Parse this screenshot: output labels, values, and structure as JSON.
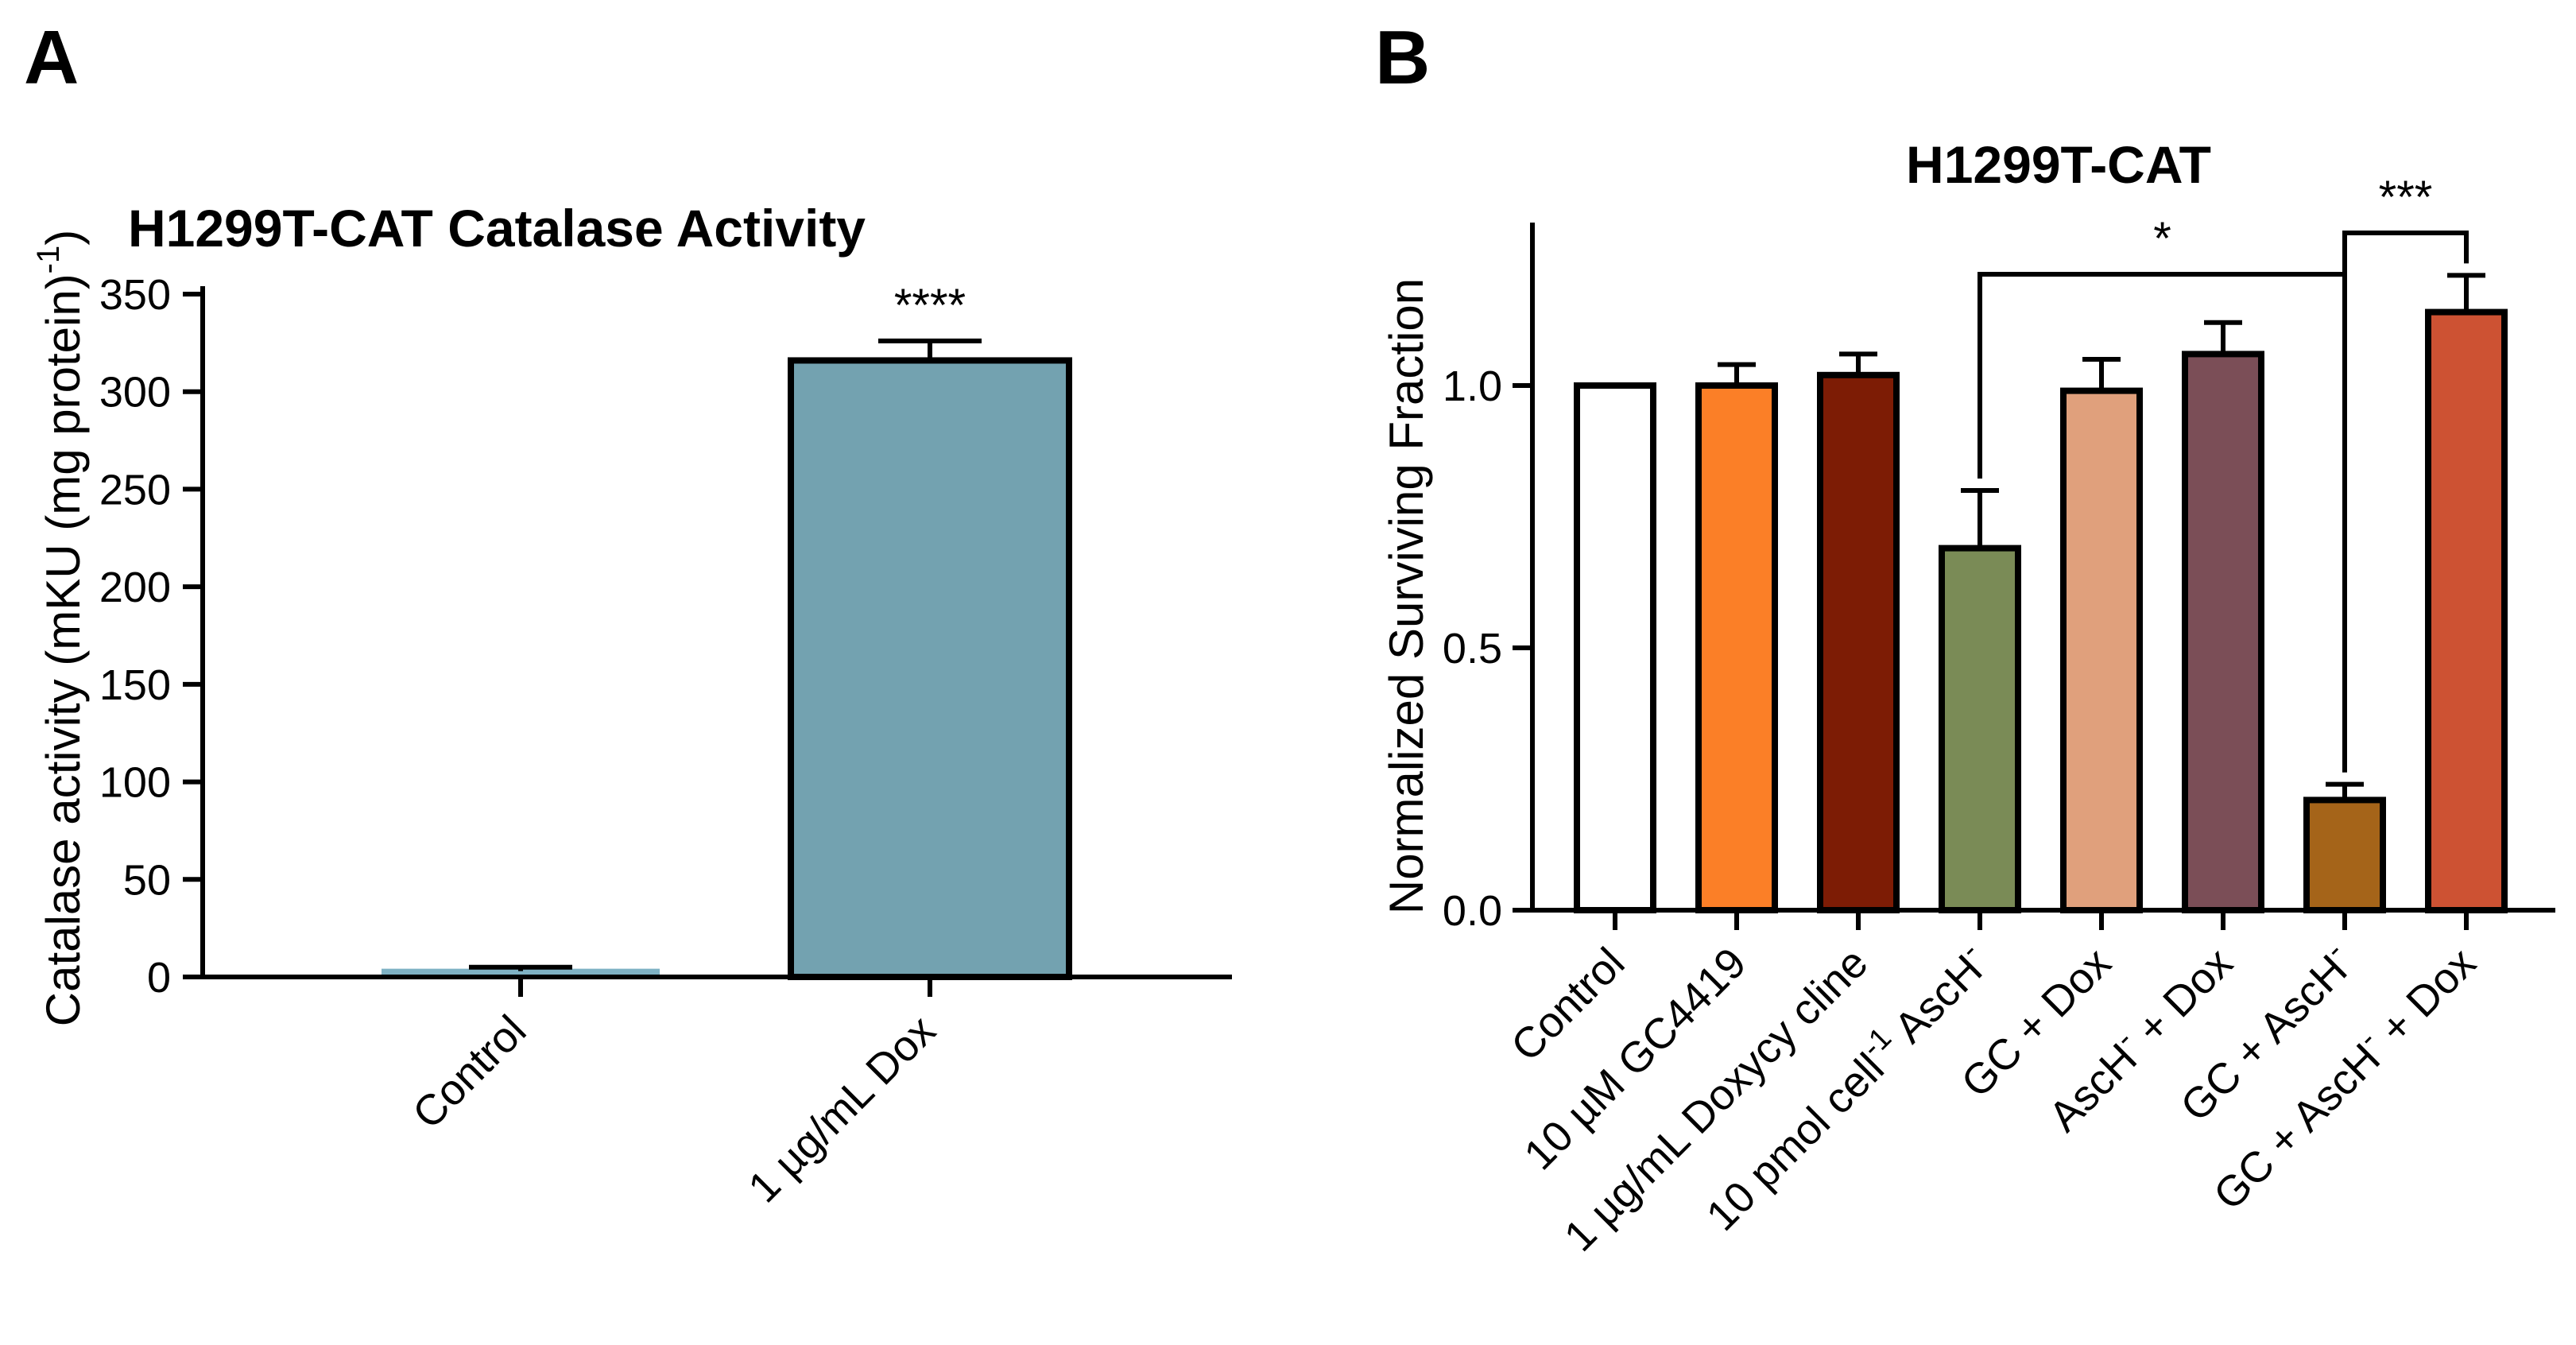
{
  "panels": {
    "a": {
      "label": "A"
    },
    "b": {
      "label": "B"
    }
  },
  "chart_data": [
    {
      "type": "bar",
      "panel": "A",
      "title": "H1299T-CAT Catalase  Activity",
      "xlabel": "",
      "ylabel": "Catalase activity (mKU (mg protein)",
      "ylabel_superscript": "-1",
      "ylabel_suffix": ")",
      "ylim": [
        0,
        350
      ],
      "yticks": [
        0,
        50,
        100,
        150,
        200,
        250,
        300,
        350
      ],
      "categories": [
        "Control",
        "1 µg/mL Dox"
      ],
      "values": [
        3,
        316
      ],
      "errors": [
        2,
        10
      ],
      "colors": [
        "#7fb2c4",
        "#73a2b0"
      ],
      "significance": [
        {
          "category": "1 µg/mL Dox",
          "label": "****"
        }
      ]
    },
    {
      "type": "bar",
      "panel": "B",
      "title": "H1299T-CAT",
      "xlabel": "",
      "ylabel": "Normalized Surviving  Fraction",
      "ylim": [
        0,
        1.3
      ],
      "yticks": [
        "0.0",
        "0.5",
        "1.0"
      ],
      "categories": [
        "Control",
        "10 µM GC4419",
        "1 µg/mL Doxycycline",
        "10 pmol cell -1 AscH-",
        "GC + Dox",
        "AscH- + Dox",
        "GC + AscH-",
        "GC + AscH- + Dox"
      ],
      "category_display": [
        {
          "text": "Control"
        },
        {
          "text": "10 µM GC4419"
        },
        {
          "text": "1 µg/mL Doxycy cline"
        },
        {
          "text": "10 pmol cell",
          "sup": "-1",
          "after": " AscH",
          "sup2": "-"
        },
        {
          "text": "GC + Dox"
        },
        {
          "text": "AscH",
          "sup": "-",
          "after": " + Dox"
        },
        {
          "text": "GC + AscH",
          "sup": "-"
        },
        {
          "text": "GC + AscH",
          "sup": "-",
          "after": " + Dox"
        }
      ],
      "values": [
        1.0,
        1.0,
        1.02,
        0.69,
        0.99,
        1.06,
        0.21,
        1.14
      ],
      "errors": [
        0.0,
        0.04,
        0.04,
        0.11,
        0.06,
        0.06,
        0.03,
        0.07
      ],
      "colors": [
        "#ffffff",
        "#fb7f27",
        "#7d1c05",
        "#7a8b56",
        "#e0a07c",
        "#7b4e57",
        "#a56419",
        "#cd5233"
      ],
      "significance": [
        {
          "between": [
            "10 pmol cell -1 AscH-",
            "GC + AscH-"
          ],
          "label": "*"
        },
        {
          "between": [
            "GC + AscH-",
            "GC + AscH- + Dox"
          ],
          "label": "***"
        }
      ]
    }
  ]
}
